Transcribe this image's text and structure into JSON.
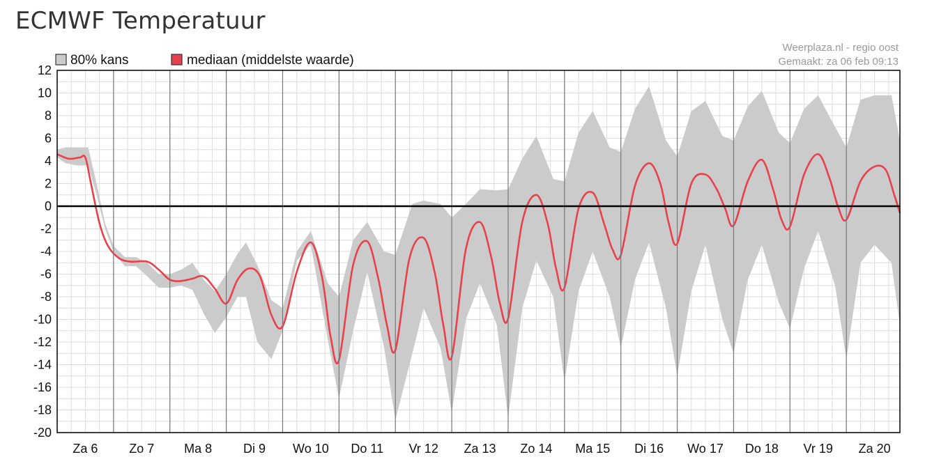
{
  "title": "ECMWF Temperatuur",
  "source_line1": "Weerplaza.nl - regio oost",
  "source_line2": "Gemaakt: za 06 feb 09:13",
  "colors": {
    "band": "#cbcbcb",
    "median": "#e8414c",
    "grid": "#dddddd",
    "day_line": "#777777",
    "zero_line": "#000000"
  },
  "chart_data": {
    "type": "area",
    "x_unit": "days since Za 6 00:00",
    "xlim": [
      0,
      14.95
    ],
    "ylim": [
      -20,
      12
    ],
    "yticks": [
      12,
      10,
      8,
      6,
      4,
      2,
      0,
      -2,
      -4,
      -6,
      -8,
      -10,
      -12,
      -14,
      -16,
      -18,
      -20
    ],
    "ytick_labels": [
      "12",
      "10",
      "8",
      "6",
      "4",
      "2",
      "0",
      "-2",
      "-4",
      "-6",
      "-8",
      "-10",
      "-12",
      "-14",
      "-16",
      "-18",
      "-20"
    ],
    "categories": [
      "Za 6",
      "Zo 7",
      "Ma 8",
      "Di 9",
      "Wo 10",
      "Do 11",
      "Vr 12",
      "Za 13",
      "Zo 14",
      "Ma 15",
      "Di 16",
      "Wo 17",
      "Do 18",
      "Vr 19",
      "Za 20"
    ],
    "grid": true,
    "legend_position": "top-left",
    "series": [
      {
        "name": "80% kans",
        "kind": "band",
        "x": [
          0,
          0.15,
          0.35,
          0.55,
          0.7,
          0.85,
          1.0,
          1.2,
          1.4,
          1.6,
          1.8,
          2.0,
          2.2,
          2.4,
          2.6,
          2.8,
          3.0,
          3.2,
          3.35,
          3.55,
          3.8,
          4.0,
          4.25,
          4.5,
          4.8,
          5.0,
          5.25,
          5.5,
          5.8,
          6.0,
          6.3,
          6.5,
          6.8,
          7.0,
          7.25,
          7.5,
          7.8,
          8.0,
          8.25,
          8.5,
          8.8,
          9.0,
          9.25,
          9.5,
          9.8,
          10.0,
          10.25,
          10.5,
          10.8,
          11.0,
          11.25,
          11.5,
          11.8,
          12.0,
          12.25,
          12.5,
          12.8,
          13.0,
          13.25,
          13.5,
          13.8,
          14.0,
          14.25,
          14.5,
          14.8,
          14.95
        ],
        "upper": [
          5.0,
          5.2,
          5.2,
          5.2,
          2.0,
          -1.5,
          -3.5,
          -4.5,
          -4.5,
          -5.0,
          -6.0,
          -6.0,
          -5.6,
          -5.0,
          -6.5,
          -7.5,
          -6.0,
          -4.2,
          -3.2,
          -5.2,
          -8.3,
          -9.0,
          -4.0,
          -2.2,
          -6.8,
          -8.0,
          -3.0,
          -1.4,
          -4.0,
          -4.3,
          0.2,
          0.5,
          0.2,
          -1.0,
          0.2,
          1.5,
          1.4,
          1.5,
          4.2,
          6.2,
          2.4,
          2.2,
          6.5,
          8.4,
          5.2,
          4.8,
          8.6,
          10.6,
          5.8,
          4.4,
          8.4,
          9.3,
          6.2,
          5.8,
          8.8,
          10.2,
          6.5,
          5.6,
          8.6,
          9.8,
          7.0,
          5.2,
          9.4,
          9.8,
          9.8,
          5.8
        ],
        "lower": [
          4.3,
          3.8,
          3.6,
          3.6,
          1.0,
          -2.0,
          -4.0,
          -5.3,
          -5.3,
          -6.2,
          -7.2,
          -7.2,
          -7.0,
          -7.4,
          -9.5,
          -11.2,
          -9.8,
          -8.0,
          -8.0,
          -12.0,
          -13.5,
          -11.0,
          -4.8,
          -3.4,
          -11.8,
          -17.0,
          -11.0,
          -5.8,
          -12.5,
          -18.9,
          -13.0,
          -9.0,
          -12.5,
          -18.2,
          -10.0,
          -6.8,
          -10.5,
          -18.7,
          -9.0,
          -4.8,
          -8.0,
          -15.5,
          -7.5,
          -4.0,
          -8.0,
          -12.5,
          -6.5,
          -3.2,
          -9.0,
          -15.0,
          -7.5,
          -3.4,
          -10.0,
          -13.0,
          -6.5,
          -3.4,
          -8.5,
          -10.8,
          -5.5,
          -2.2,
          -7.0,
          -13.5,
          -5.0,
          -3.4,
          -5.0,
          -10.5
        ]
      },
      {
        "name": "mediaan (middelste waarde)",
        "kind": "line",
        "x": [
          0,
          0.2,
          0.4,
          0.5,
          0.6,
          0.75,
          0.9,
          1.1,
          1.3,
          1.6,
          1.8,
          2.0,
          2.2,
          2.4,
          2.6,
          2.8,
          3.0,
          3.2,
          3.4,
          3.6,
          3.8,
          4.0,
          4.25,
          4.5,
          4.7,
          4.85,
          5.0,
          5.25,
          5.5,
          5.7,
          5.85,
          6.0,
          6.25,
          6.5,
          6.7,
          6.85,
          7.0,
          7.25,
          7.5,
          7.7,
          7.85,
          8.0,
          8.25,
          8.5,
          8.7,
          8.85,
          9.0,
          9.25,
          9.5,
          9.7,
          9.85,
          10.0,
          10.25,
          10.5,
          10.7,
          10.85,
          11.0,
          11.25,
          11.5,
          11.7,
          11.85,
          12.0,
          12.25,
          12.5,
          12.7,
          12.85,
          13.0,
          13.25,
          13.5,
          13.7,
          13.85,
          14.0,
          14.25,
          14.5,
          14.7,
          14.85,
          14.95
        ],
        "y": [
          4.6,
          4.2,
          4.3,
          4.3,
          2.0,
          -1.5,
          -3.5,
          -4.6,
          -4.9,
          -4.9,
          -5.6,
          -6.5,
          -6.6,
          -6.4,
          -6.2,
          -7.3,
          -8.6,
          -6.5,
          -5.5,
          -6.2,
          -9.6,
          -10.6,
          -5.8,
          -3.2,
          -6.3,
          -11.5,
          -13.6,
          -5.2,
          -3.1,
          -6.5,
          -10.5,
          -12.7,
          -4.6,
          -2.8,
          -5.9,
          -10.5,
          -13.3,
          -3.8,
          -1.4,
          -4.5,
          -8.5,
          -9.9,
          -1.4,
          1.0,
          -1.5,
          -5.5,
          -7.2,
          -0.2,
          1.2,
          -1.5,
          -3.8,
          -4.3,
          1.8,
          3.8,
          2.0,
          -1.5,
          -3.3,
          2.0,
          2.8,
          1.5,
          -0.2,
          -1.7,
          2.2,
          4.1,
          1.5,
          -1.2,
          -1.8,
          2.8,
          4.6,
          2.5,
          0.0,
          -1.2,
          2.2,
          3.5,
          3.2,
          1.0,
          -0.6
        ]
      }
    ]
  }
}
